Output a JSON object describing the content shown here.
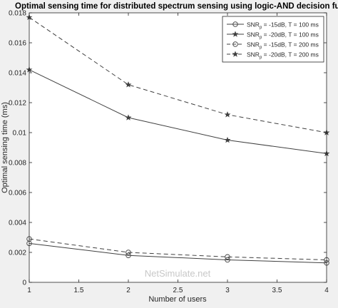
{
  "chart_data": {
    "type": "line",
    "title": "Optimal sensing time for distributed spectrum sensing using logic-AND decision fusion rule",
    "xlabel": "Number of users",
    "ylabel": "Optimal sensing time (ms)",
    "xlim": [
      1,
      4
    ],
    "ylim": [
      0,
      0.018
    ],
    "xticks": [
      1,
      1.5,
      2,
      2.5,
      3,
      3.5,
      4
    ],
    "xtick_labels": [
      "1",
      "1.5",
      "2",
      "2.5",
      "3",
      "3.5",
      "4"
    ],
    "yticks": [
      0,
      0.002,
      0.004,
      0.006,
      0.008,
      0.01,
      0.012,
      0.014,
      0.016,
      0.018
    ],
    "ytick_labels": [
      "0",
      "0.002",
      "0.004",
      "0.006",
      "0.008",
      "0.01",
      "0.012",
      "0.014",
      "0.016",
      "0.018"
    ],
    "grid": false,
    "legend_position": "top-right",
    "x": [
      1,
      2,
      3,
      4
    ],
    "series": [
      {
        "name": "SNRp = -15dB, T = 100 ms",
        "label_base": "SNR",
        "label_sub": "p",
        "label_rest": " = -15dB, T = 100 ms",
        "marker": "circle",
        "line_style": "solid",
        "values": [
          0.0026,
          0.0018,
          0.0015,
          0.0013
        ]
      },
      {
        "name": "SNRp = -20dB, T = 100 ms",
        "label_base": "SNR",
        "label_sub": "p",
        "label_rest": " = -20dB, T = 100 ms",
        "marker": "star",
        "line_style": "solid",
        "values": [
          0.0142,
          0.011,
          0.0095,
          0.0086
        ]
      },
      {
        "name": "SNRp = -15dB, T = 200 ms",
        "label_base": "SNR",
        "label_sub": "p",
        "label_rest": " = -15dB, T = 200 ms",
        "marker": "circle",
        "line_style": "dashed",
        "values": [
          0.0029,
          0.002,
          0.0017,
          0.0015
        ]
      },
      {
        "name": "SNRp = -20dB, T = 200 ms",
        "label_base": "SNR",
        "label_sub": "p",
        "label_rest": " = -20dB, T = 200 ms",
        "marker": "star",
        "line_style": "dashed",
        "values": [
          0.0177,
          0.0132,
          0.0112,
          0.01
        ]
      }
    ],
    "watermark": "NetSimulate.net",
    "colors": {
      "figure_bg": "#f0f0f0",
      "axes_bg": "#ffffff",
      "line": "#404040",
      "watermark": "#c8c8c8"
    }
  }
}
